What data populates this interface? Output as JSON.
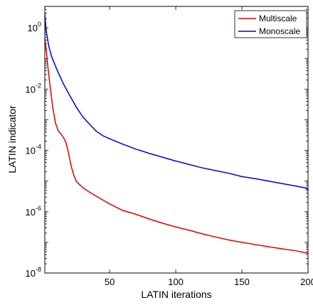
{
  "chart_data": {
    "type": "line",
    "title": "",
    "xlabel": "LATIN iterations",
    "ylabel": "LATIN indicator",
    "xlim": [
      1,
      200
    ],
    "ylim": [
      1e-08,
      5
    ],
    "yscale": "log",
    "x_ticks": [
      50,
      100,
      150,
      200
    ],
    "x_tick_labels": [
      "50",
      "100",
      "150",
      "200"
    ],
    "y_ticks": [
      1e-08,
      1e-06,
      0.0001,
      0.01,
      1
    ],
    "y_tick_labels": [
      {
        "base": "10",
        "exp": "-8"
      },
      {
        "base": "10",
        "exp": "-6"
      },
      {
        "base": "10",
        "exp": "-4"
      },
      {
        "base": "10",
        "exp": "-2"
      },
      {
        "base": "10",
        "exp": "0"
      }
    ],
    "grid": false,
    "legend_position": "top-right",
    "series": [
      {
        "name": "Multiscale",
        "color": "#e00000",
        "points": [
          [
            1,
            0.5
          ],
          [
            2,
            0.2
          ],
          [
            3,
            0.07
          ],
          [
            5,
            0.012
          ],
          [
            7,
            0.0025
          ],
          [
            9,
            0.0008
          ],
          [
            11,
            0.00045
          ],
          [
            13,
            0.00035
          ],
          [
            15,
            0.00027
          ],
          [
            17,
            0.00018
          ],
          [
            19,
            8e-05
          ],
          [
            21,
            3e-05
          ],
          [
            23,
            1.5e-05
          ],
          [
            25,
            9.5e-06
          ],
          [
            30,
            6e-06
          ],
          [
            35,
            4.3e-06
          ],
          [
            40,
            3.2e-06
          ],
          [
            45,
            2.4e-06
          ],
          [
            50,
            1.8e-06
          ],
          [
            60,
            1.1e-06
          ],
          [
            70,
            8.2e-07
          ],
          [
            80,
            5.8e-07
          ],
          [
            90,
            4.2e-07
          ],
          [
            100,
            3.2e-07
          ],
          [
            110,
            2.5e-07
          ],
          [
            120,
            1.9e-07
          ],
          [
            130,
            1.5e-07
          ],
          [
            140,
            1.2e-07
          ],
          [
            150,
            1e-07
          ],
          [
            160,
            8.5e-08
          ],
          [
            170,
            7.2e-08
          ],
          [
            180,
            6.2e-08
          ],
          [
            190,
            5.4e-08
          ],
          [
            200,
            4.4e-08
          ]
        ]
      },
      {
        "name": "Monoscale",
        "color": "#0000dd",
        "points": [
          [
            1,
            3
          ],
          [
            2,
            0.8
          ],
          [
            4,
            0.25
          ],
          [
            6,
            0.12
          ],
          [
            10,
            0.045
          ],
          [
            15,
            0.015
          ],
          [
            20,
            0.006
          ],
          [
            25,
            0.0025
          ],
          [
            30,
            0.0012
          ],
          [
            35,
            0.0007
          ],
          [
            40,
            0.00042
          ],
          [
            45,
            0.0003
          ],
          [
            50,
            0.00024
          ],
          [
            60,
            0.00016
          ],
          [
            70,
            0.00011
          ],
          [
            80,
            8e-05
          ],
          [
            90,
            6e-05
          ],
          [
            100,
            4.5e-05
          ],
          [
            110,
            3.5e-05
          ],
          [
            120,
            2.7e-05
          ],
          [
            130,
            2.2e-05
          ],
          [
            140,
            1.8e-05
          ],
          [
            150,
            1.4e-05
          ],
          [
            160,
            1.2e-05
          ],
          [
            170,
            1e-05
          ],
          [
            180,
            8.3e-06
          ],
          [
            190,
            7e-06
          ],
          [
            198,
            6e-06
          ],
          [
            200,
            5.2e-06
          ]
        ]
      }
    ]
  }
}
